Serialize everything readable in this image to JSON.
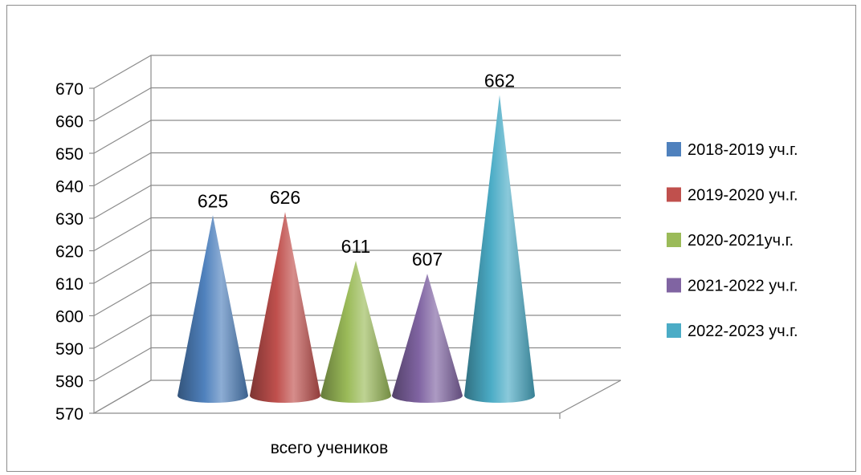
{
  "chart_data": {
    "type": "bar",
    "shape": "cone-3d",
    "categories": [
      "всего учеников"
    ],
    "y_ticks": [
      "570",
      "580",
      "590",
      "600",
      "610",
      "620",
      "630",
      "640",
      "650",
      "660",
      "670"
    ],
    "ylim": [
      570,
      670
    ],
    "grid": true,
    "legend_position": "right",
    "series": [
      {
        "name": "2018-2019 уч.г.",
        "value": 625,
        "label": "625",
        "color": "#4F81BD"
      },
      {
        "name": "2019-2020 уч.г.",
        "value": 626,
        "label": "626",
        "color": "#C0504D"
      },
      {
        "name": "2020-2021уч.г.",
        "value": 611,
        "label": "611",
        "color": "#9BBB59"
      },
      {
        "name": "2021-2022 уч.г.",
        "value": 607,
        "label": "607",
        "color": "#8064A2"
      },
      {
        "name": "2022-2023 уч.г.",
        "value": 662,
        "label": "662",
        "color": "#4BACC6"
      }
    ]
  }
}
